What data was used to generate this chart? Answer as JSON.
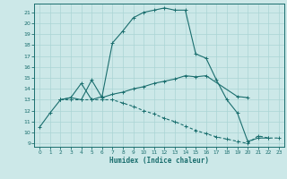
{
  "xlabel": "Humidex (Indice chaleur)",
  "bg_color": "#cce8e8",
  "line_color": "#1a6e6e",
  "grid_color": "#aad4d4",
  "xlim": [
    -0.5,
    23.5
  ],
  "ylim": [
    8.7,
    21.8
  ],
  "xticks": [
    0,
    1,
    2,
    3,
    4,
    5,
    6,
    7,
    8,
    9,
    10,
    11,
    12,
    13,
    14,
    15,
    16,
    17,
    18,
    19,
    20,
    21,
    22,
    23
  ],
  "yticks": [
    9,
    10,
    11,
    12,
    13,
    14,
    15,
    16,
    17,
    18,
    19,
    20,
    21
  ],
  "line1_x": [
    0,
    1,
    2,
    3,
    4,
    5,
    6,
    7,
    8,
    9,
    10,
    11,
    12,
    13,
    14,
    15,
    16,
    17,
    18,
    19,
    20,
    21,
    22
  ],
  "line1_y": [
    10.5,
    11.8,
    13.0,
    13.2,
    14.5,
    13.0,
    13.3,
    18.2,
    19.3,
    20.5,
    21.0,
    21.2,
    21.4,
    21.2,
    21.2,
    17.2,
    16.8,
    14.8,
    13.0,
    11.8,
    9.2,
    9.5,
    9.5
  ],
  "line2_x": [
    2,
    3,
    4,
    5,
    6,
    7,
    8,
    9,
    10,
    11,
    12,
    13,
    14,
    15,
    16,
    19,
    20
  ],
  "line2_y": [
    13.0,
    13.2,
    13.0,
    14.8,
    13.2,
    13.5,
    13.7,
    14.0,
    14.2,
    14.5,
    14.7,
    14.9,
    15.2,
    15.1,
    15.2,
    13.3,
    13.2
  ],
  "line3_x": [
    2,
    3,
    4,
    5,
    6,
    7,
    8,
    9,
    10,
    11,
    12,
    13,
    14,
    15,
    16,
    17,
    18,
    19,
    20,
    21,
    22,
    23
  ],
  "line3_y": [
    13.0,
    13.0,
    13.0,
    13.0,
    13.0,
    13.0,
    12.7,
    12.4,
    12.0,
    11.7,
    11.3,
    11.0,
    10.6,
    10.2,
    9.9,
    9.6,
    9.4,
    9.2,
    9.0,
    9.7,
    9.5,
    9.5
  ]
}
